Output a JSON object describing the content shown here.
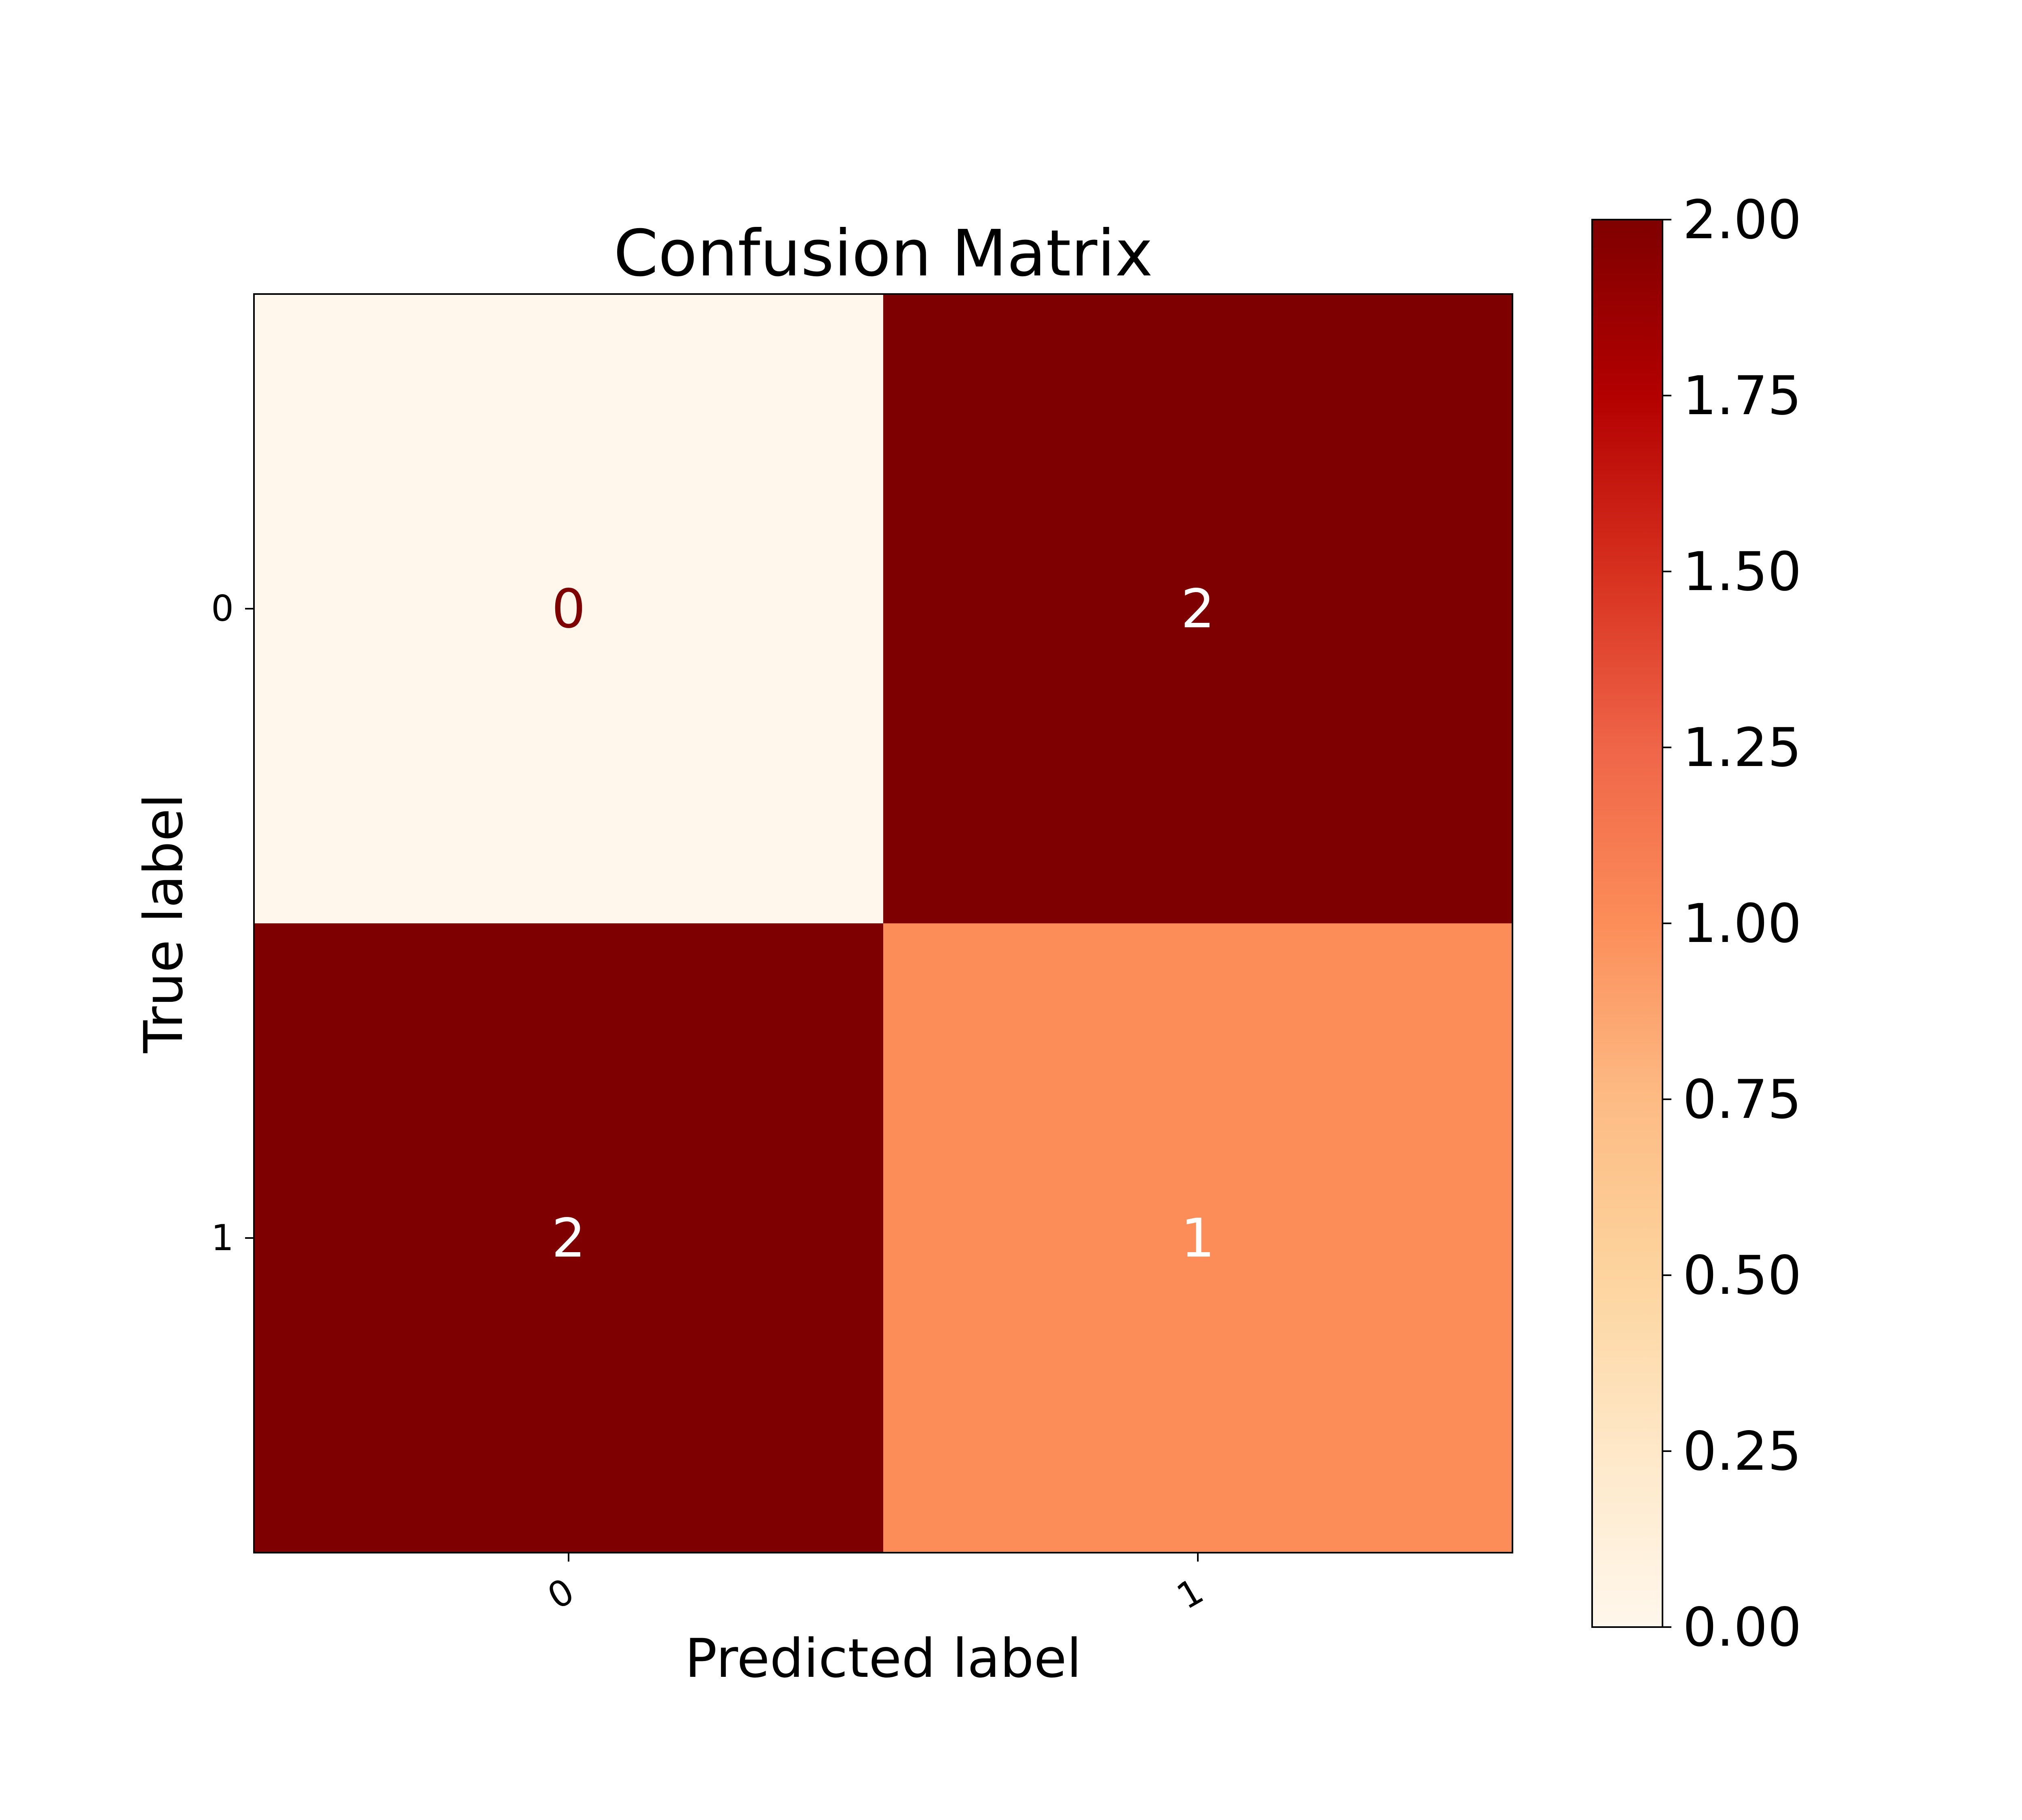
{
  "chart_data": {
    "type": "heatmap",
    "title": "Confusion Matrix",
    "xlabel": "Predicted label",
    "ylabel": "True label",
    "x_categories": [
      "0",
      "1"
    ],
    "y_categories": [
      "0",
      "1"
    ],
    "matrix": [
      [
        0,
        2
      ],
      [
        2,
        1
      ]
    ],
    "cell_labels": [
      [
        "0",
        "2"
      ],
      [
        "2",
        "1"
      ]
    ],
    "colormap": "OrRd",
    "color_range": [
      0,
      2
    ],
    "colorbar_ticks": [
      "0.00",
      "0.25",
      "0.50",
      "0.75",
      "1.00",
      "1.25",
      "1.50",
      "1.75",
      "2.00"
    ],
    "x_tick_rotation": "diagonal",
    "grid": false,
    "colors": {
      "low": "#fff7ec",
      "mid": "#fc8d59",
      "high": "#7f0000",
      "text_on_light": "#7f0000",
      "text_on_dark": "#ffffff"
    }
  }
}
